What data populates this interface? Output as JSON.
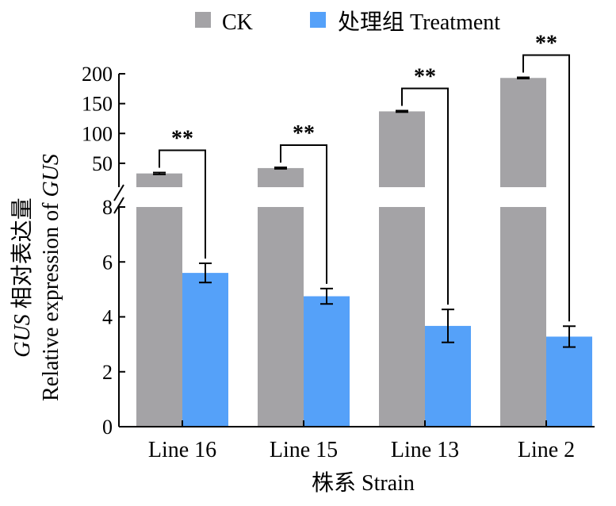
{
  "chart_data": {
    "type": "bar",
    "categories": [
      "Line 16",
      "Line 15",
      "Line 13",
      "Line 2"
    ],
    "series": [
      {
        "name": "CK",
        "values": [
          33,
          42,
          137,
          193
        ],
        "errors": [
          1.5,
          1.2,
          1.2,
          1.0
        ],
        "color": "#a4a3a6"
      },
      {
        "name": "处理组 Treatment",
        "values": [
          5.6,
          4.75,
          3.67,
          3.28
        ],
        "errors": [
          0.35,
          0.28,
          0.6,
          0.38
        ],
        "color": "#55a1f9"
      }
    ],
    "significance": [
      "**",
      "**",
      "**",
      "**"
    ],
    "xlabel": "株系 Strain",
    "ylabel_line1_italic": "GUS",
    "ylabel_line1_rest": " 相对表达量",
    "ylabel_line2_prefix": "Relative expression of ",
    "ylabel_line2_italic": "GUS",
    "axis_break": true,
    "lower_ylim": [
      0,
      8
    ],
    "lower_ticks": [
      "0",
      "2",
      "4",
      "6",
      "8"
    ],
    "upper_ylim": [
      10,
      200
    ],
    "upper_ticks": [
      "50",
      "100",
      "150",
      "200"
    ],
    "legend_position": "top"
  }
}
